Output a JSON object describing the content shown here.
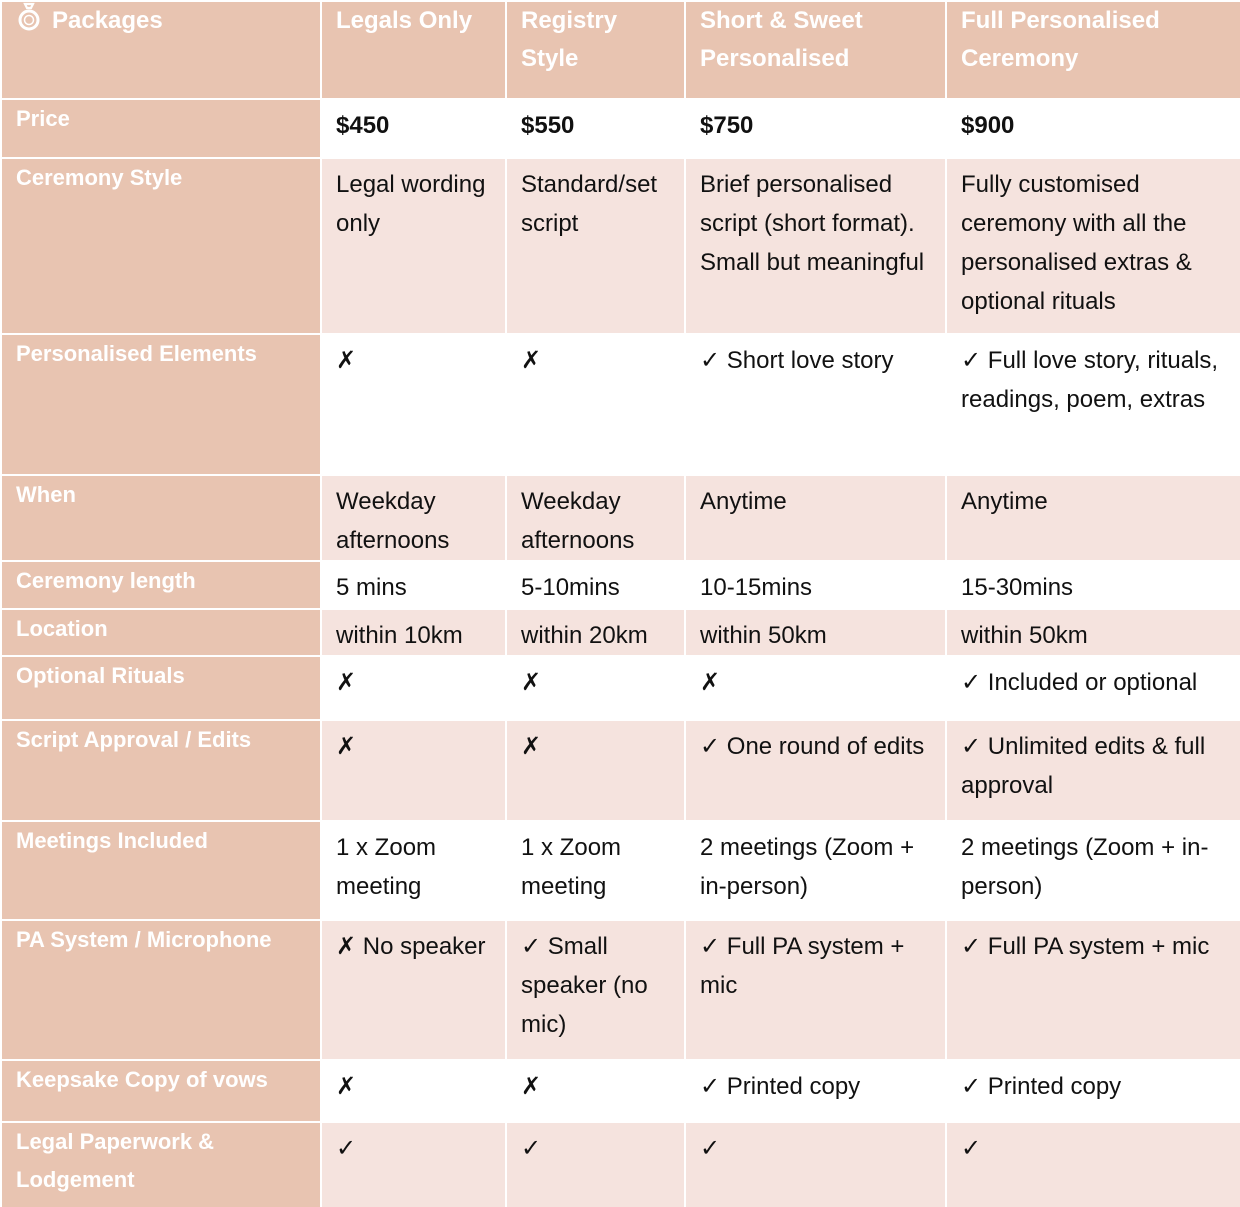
{
  "header": {
    "title": "Packages",
    "columns": [
      "Legals Only",
      "Registry Style",
      "Short & Sweet Personalised",
      "Full Personalised Ceremony"
    ]
  },
  "rows": [
    {
      "label": "Price",
      "cells": [
        "$450",
        "$550",
        "$750",
        "$900"
      ]
    },
    {
      "label": "Ceremony Style",
      "cells": [
        "Legal wording only",
        "Standard/set script",
        "Brief personalised script (short format). Small but meaningful",
        "Fully customised ceremony with all the personalised extras & optional rituals"
      ]
    },
    {
      "label": "Personalised Elements",
      "cells": [
        "✗",
        "✗",
        "✓ Short love story",
        "✓ Full love story, rituals, readings, poem, extras"
      ]
    },
    {
      "label": "When",
      "cells": [
        "Weekday afternoons",
        "Weekday afternoons",
        "Anytime",
        "Anytime"
      ]
    },
    {
      "label": "Ceremony length",
      "cells": [
        "5 mins",
        "5-10mins",
        "10-15mins",
        "15-30mins"
      ]
    },
    {
      "label": "Location",
      "cells": [
        "within 10km",
        "within 20km",
        "within 50km",
        "within 50km"
      ]
    },
    {
      "label": "Optional Rituals",
      "cells": [
        "✗",
        "✗",
        "✗",
        "✓ Included or optional"
      ]
    },
    {
      "label": "Script Approval / Edits",
      "cells": [
        "✗",
        "✗",
        "✓ One round of edits",
        "✓ Unlimited edits & full approval"
      ]
    },
    {
      "label": "Meetings Included",
      "cells": [
        "1 x Zoom meeting",
        "1 x Zoom meeting",
        "2 meetings (Zoom + in-person)",
        "2 meetings (Zoom + in-person)"
      ]
    },
    {
      "label": "PA System / Microphone",
      "cells": [
        "✗ No speaker",
        "✓ Small speaker (no mic)",
        "✓ Full PA system + mic",
        "✓ Full PA system + mic"
      ]
    },
    {
      "label": "Keepsake Copy of vows",
      "cells": [
        "✗",
        "✗",
        "✓ Printed copy",
        "✓ Printed copy"
      ]
    },
    {
      "label": "Legal Paperwork & Lodgement",
      "cells": [
        "✓",
        "✓",
        "✓",
        "✓"
      ]
    }
  ]
}
